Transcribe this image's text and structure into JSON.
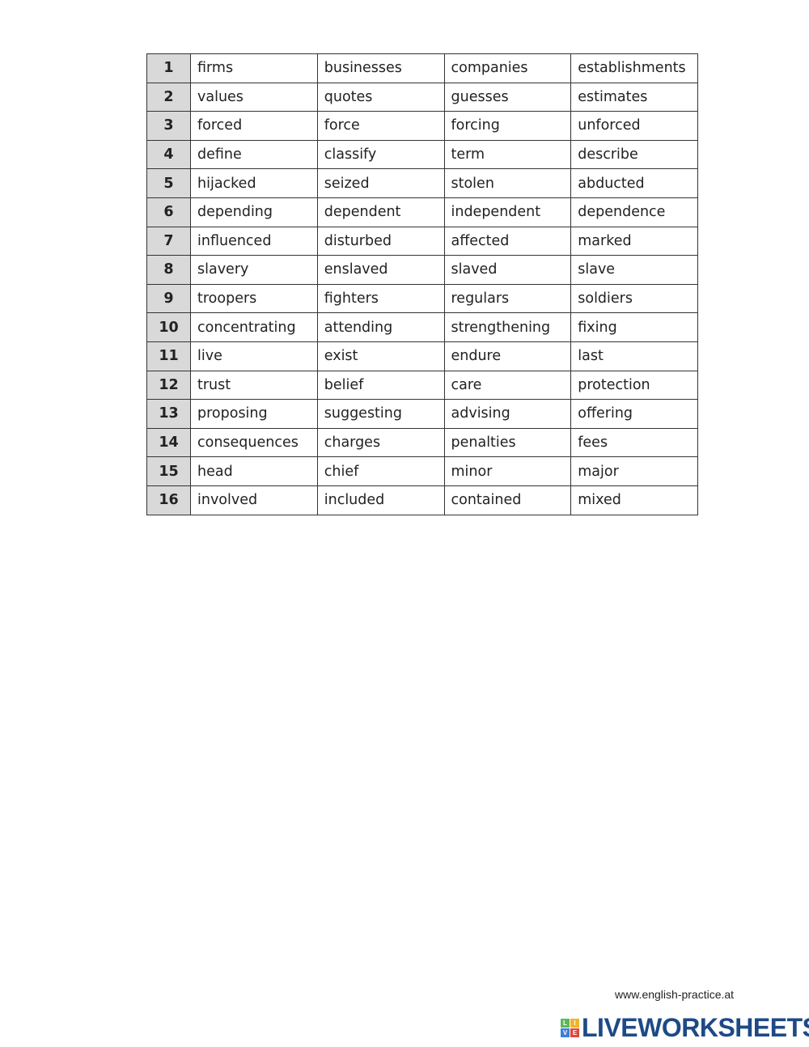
{
  "rows": [
    {
      "n": "1",
      "w": [
        "firms",
        "businesses",
        "companies",
        "establishments"
      ]
    },
    {
      "n": "2",
      "w": [
        "values",
        "quotes",
        "guesses",
        "estimates"
      ]
    },
    {
      "n": "3",
      "w": [
        "forced",
        "force",
        "forcing",
        "unforced"
      ]
    },
    {
      "n": "4",
      "w": [
        "define",
        "classify",
        "term",
        "describe"
      ]
    },
    {
      "n": "5",
      "w": [
        "hijacked",
        "seized",
        "stolen",
        "abducted"
      ]
    },
    {
      "n": "6",
      "w": [
        "depending",
        "dependent",
        "independent",
        "dependence"
      ]
    },
    {
      "n": "7",
      "w": [
        "influenced",
        "disturbed",
        "affected",
        "marked"
      ]
    },
    {
      "n": "8",
      "w": [
        "slavery",
        "enslaved",
        "slaved",
        "slave"
      ]
    },
    {
      "n": "9",
      "w": [
        "troopers",
        "fighters",
        "regulars",
        "soldiers"
      ]
    },
    {
      "n": "10",
      "w": [
        "concentrating",
        "attending",
        "strengthening",
        "fixing"
      ]
    },
    {
      "n": "11",
      "w": [
        "live",
        "exist",
        "endure",
        "last"
      ]
    },
    {
      "n": "12",
      "w": [
        "trust",
        "belief",
        "care",
        "protection"
      ]
    },
    {
      "n": "13",
      "w": [
        "proposing",
        "suggesting",
        "advising",
        "offering"
      ]
    },
    {
      "n": "14",
      "w": [
        "consequences",
        "charges",
        "penalties",
        "fees"
      ]
    },
    {
      "n": "15",
      "w": [
        "head",
        "chief",
        "minor",
        "major"
      ]
    },
    {
      "n": "16",
      "w": [
        "involved",
        "included",
        "contained",
        "mixed"
      ]
    }
  ],
  "footer": {
    "website": "www.english-practice.at",
    "logo_text": "LIVEWORKSHEETS",
    "logo_letters": [
      "L",
      "I",
      "V",
      "E"
    ],
    "logo_colors": [
      "#5cb85c",
      "#f0b429",
      "#3a7fd5",
      "#e0463b"
    ],
    "brand_color": "#1d4a86"
  }
}
